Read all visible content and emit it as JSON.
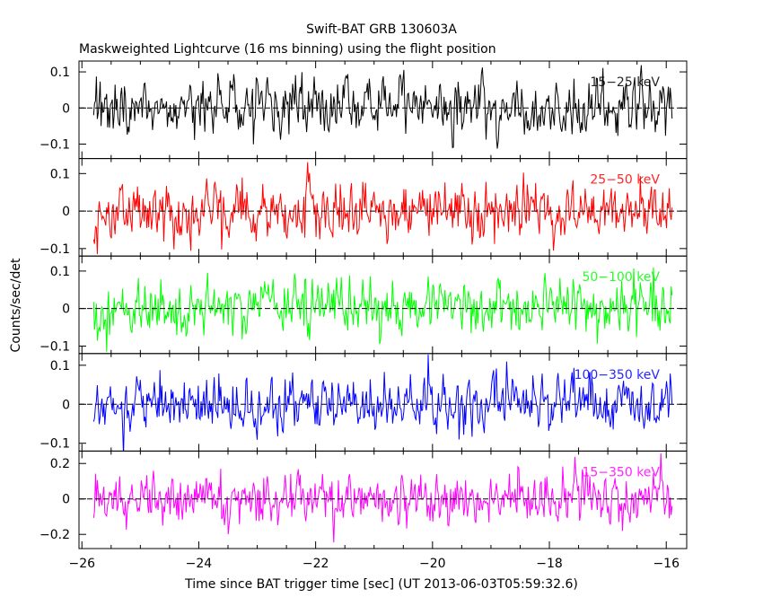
{
  "chart_data": {
    "type": "line",
    "title": "Swift-BAT GRB 130603A",
    "subtitle": "Maskweighted Lightcurve (16 ms binning) using the flight position",
    "xlabel": "Time since BAT trigger time [sec] (UT 2013-06-03T05:59:32.6)",
    "ylabel": "Counts/sec/det",
    "xlim": [
      -26.05,
      -15.65
    ],
    "x_range": [
      -25.8,
      -15.9
    ],
    "bin_seconds": 0.016,
    "x_ticks": [
      -26,
      -24,
      -22,
      -20,
      -18,
      -16
    ],
    "x_tick_labels": [
      "−26",
      "−24",
      "−22",
      "−20",
      "−18",
      "−16"
    ],
    "zero_line": "dashed",
    "panels": [
      {
        "label": "15−25 keV",
        "color": "#000000",
        "ylim": [
          -0.14,
          0.13
        ],
        "y_ticks": [
          -0.1,
          0,
          0.1
        ],
        "y_tick_labels": [
          "−0.1",
          "0",
          "0.1"
        ],
        "noise_sigma": 0.045
      },
      {
        "label": "25−50 keV",
        "color": "#ff0000",
        "ylim": [
          -0.12,
          0.14
        ],
        "y_ticks": [
          -0.1,
          0,
          0.1
        ],
        "y_tick_labels": [
          "−0.1",
          "0",
          "0.1"
        ],
        "noise_sigma": 0.045
      },
      {
        "label": "50−100 keV",
        "color": "#00ff00",
        "ylim": [
          -0.12,
          0.14
        ],
        "y_ticks": [
          -0.1,
          0,
          0.1
        ],
        "y_tick_labels": [
          "−0.1",
          "0",
          "0.1"
        ],
        "noise_sigma": 0.042
      },
      {
        "label": "100−350 keV",
        "color": "#0000ff",
        "ylim": [
          -0.12,
          0.13
        ],
        "y_ticks": [
          -0.1,
          0,
          0.1
        ],
        "y_tick_labels": [
          "−0.1",
          "0",
          "0.1"
        ],
        "noise_sigma": 0.04
      },
      {
        "label": "15−350 keV",
        "color": "#ff00ff",
        "ylim": [
          -0.28,
          0.27
        ],
        "y_ticks": [
          -0.2,
          0,
          0.2
        ],
        "y_tick_labels": [
          "−0.2",
          "0",
          "0.2"
        ],
        "noise_sigma": 0.085
      }
    ]
  }
}
